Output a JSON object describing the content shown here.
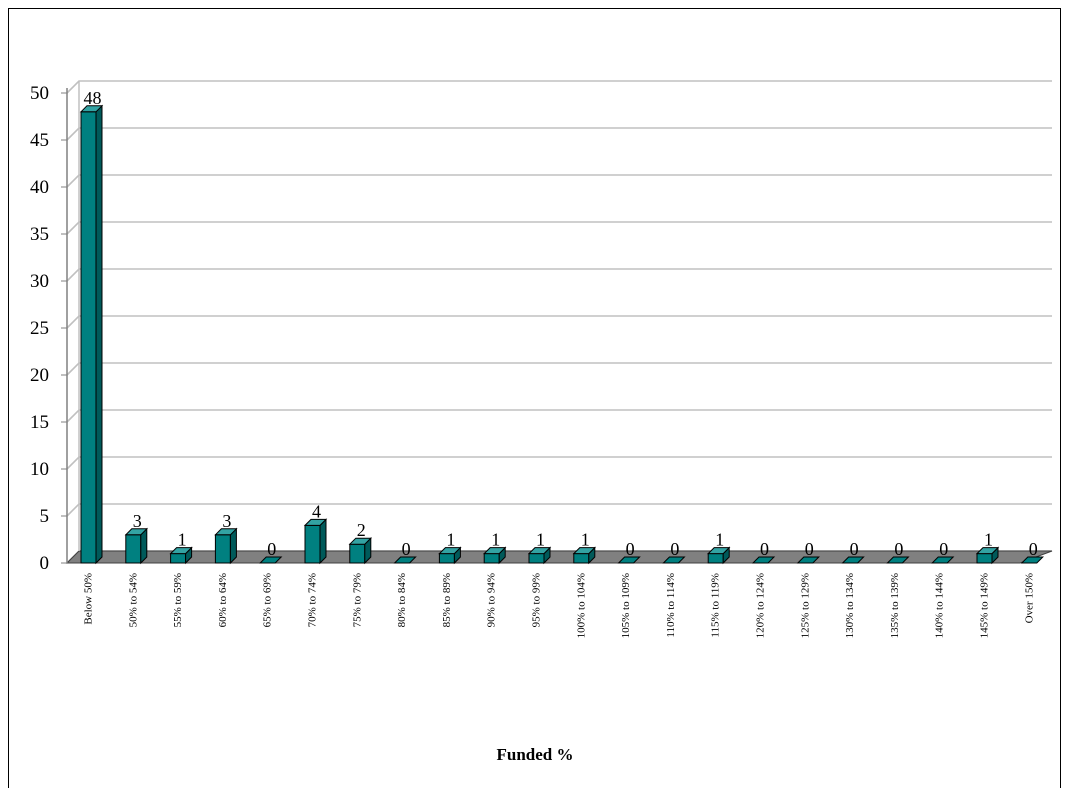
{
  "chart_data": {
    "type": "bar",
    "title": "",
    "xlabel": "Funded  %",
    "ylabel": "",
    "ylim": [
      0,
      50
    ],
    "yticks": [
      0,
      5,
      10,
      15,
      20,
      25,
      30,
      35,
      40,
      45,
      50
    ],
    "grid": true,
    "legend": "none",
    "bar_color": "#008080",
    "categories": [
      "Below 50%",
      "50% to 54%",
      "55% to 59%",
      "60% to 64%",
      "65% to 69%",
      "70% to 74%",
      "75% to 79%",
      "80% to 84%",
      "85% to 89%",
      "90% to 94%",
      "95% to 99%",
      "100% to 104%",
      "105% to 109%",
      "110% to 114%",
      "115% to 119%",
      "120% to 124%",
      "125% to 129%",
      "130% to 134%",
      "135% to 139%",
      "140% to 144%",
      "145% to 149%",
      "Over 150%"
    ],
    "values": [
      48,
      3,
      1,
      3,
      0,
      4,
      2,
      0,
      1,
      1,
      1,
      1,
      0,
      0,
      1,
      0,
      0,
      0,
      0,
      0,
      1,
      0
    ]
  }
}
